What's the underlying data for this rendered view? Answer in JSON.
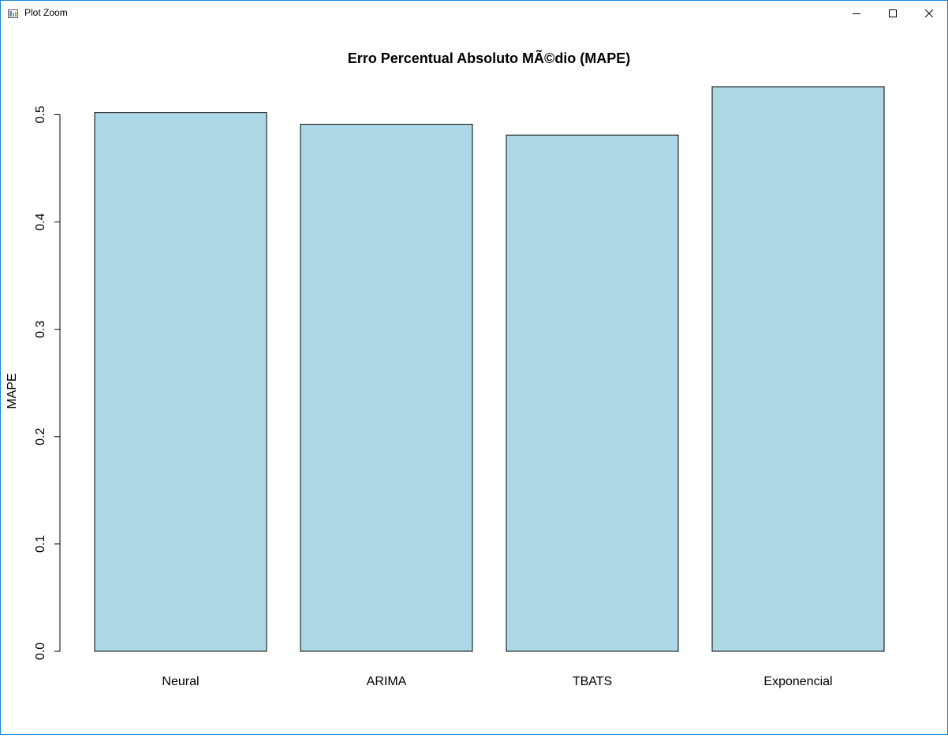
{
  "window": {
    "title": "Plot Zoom",
    "icon": "plot-window-icon",
    "controls": [
      "minimize-icon",
      "maximize-icon",
      "close-icon"
    ]
  },
  "chart_data": {
    "type": "bar",
    "title": "Erro Percentual Absoluto MÃ©dio (MAPE)",
    "xlabel": "",
    "ylabel": "MAPE",
    "categories": [
      "Neural",
      "ARIMA",
      "TBATS",
      "Exponencial"
    ],
    "values": [
      0.502,
      0.491,
      0.481,
      0.526
    ],
    "ylim": [
      0,
      0.526
    ],
    "yticks": [
      0.0,
      0.1,
      0.2,
      0.3,
      0.4,
      0.5
    ],
    "ytick_labels": [
      "0.0",
      "0.1",
      "0.2",
      "0.3",
      "0.4",
      "0.5"
    ],
    "bar_color": "#add8e6",
    "bar_border_color": "#000000",
    "grid": false,
    "legend": "none"
  }
}
